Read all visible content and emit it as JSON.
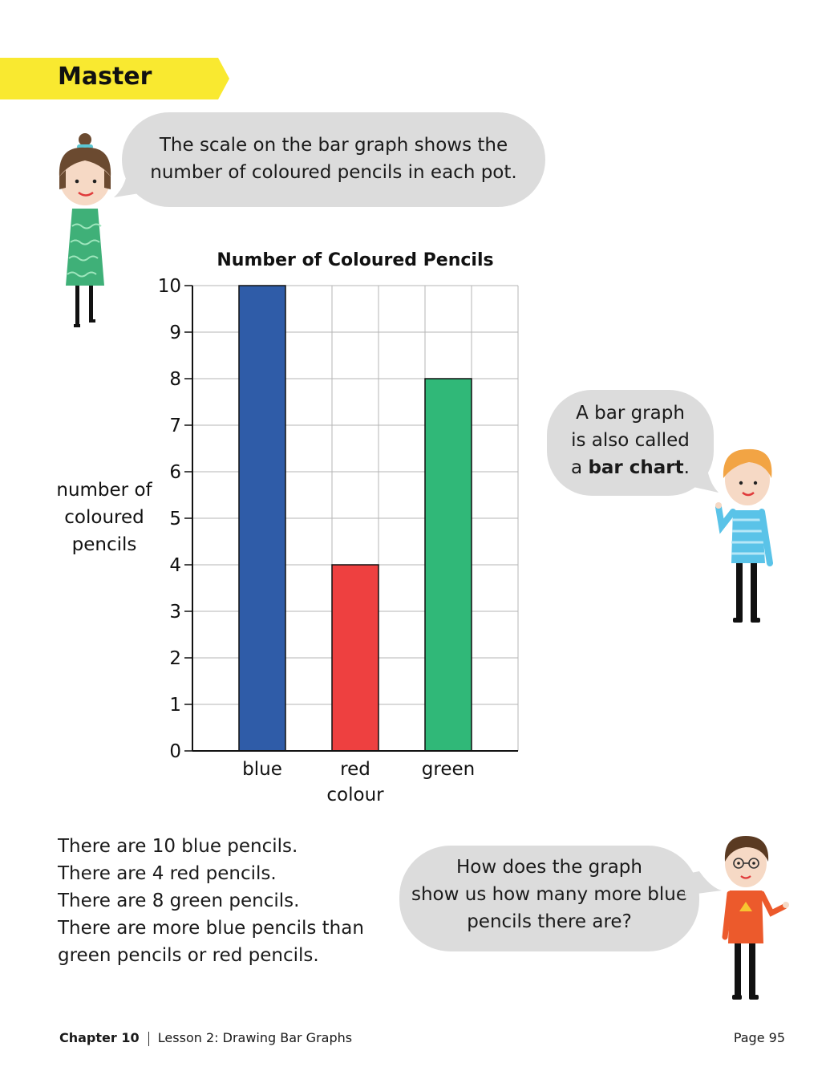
{
  "banner": {
    "label": "Master"
  },
  "bubble_top": {
    "lines": [
      "The scale on the bar graph shows the",
      "number of coloured pencils in each pot."
    ]
  },
  "bubble_right": {
    "line1": "A bar graph",
    "line2": "is also called",
    "line3_prefix": "a ",
    "line3_bold": "bar chart",
    "line3_suffix": "."
  },
  "bubble_bottom": {
    "lines": [
      "How does the graph",
      "show us how many more blue",
      "pencils there are?"
    ]
  },
  "body_text": {
    "lines": [
      "There are 10 blue pencils.",
      "There are 4 red pencils.",
      "There are 8 green pencils.",
      "There are more blue pencils than",
      "green pencils or red pencils."
    ]
  },
  "footer": {
    "chapter": "Chapter 10",
    "lesson": "Lesson 2: Drawing Bar Graphs",
    "page": "Page 95"
  },
  "chart_data": {
    "type": "bar",
    "title": "Number of Coloured Pencils",
    "categories": [
      "blue",
      "red",
      "green"
    ],
    "values": [
      10,
      4,
      8
    ],
    "colors": [
      "#2f5ca8",
      "#ee4040",
      "#30b878"
    ],
    "xlabel": "colour",
    "ylabel": [
      "number of",
      "coloured",
      "pencils"
    ],
    "ylim": [
      0,
      10
    ],
    "yticks": [
      0,
      1,
      2,
      3,
      4,
      5,
      6,
      7,
      8,
      9,
      10
    ],
    "grid": true
  }
}
